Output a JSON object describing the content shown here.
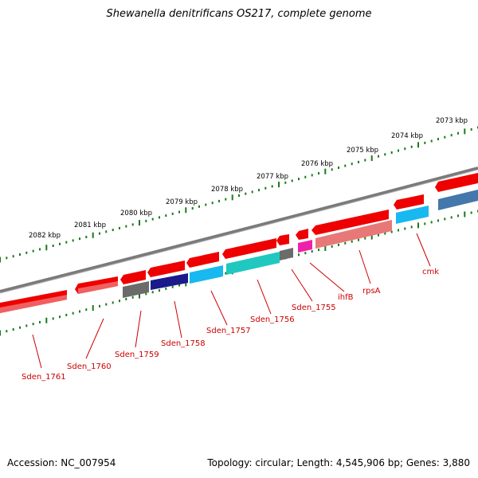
{
  "title": "Shewanella denitrificans OS217, complete genome",
  "footer": {
    "accession": "Accession: NC_007954",
    "summary": "Topology: circular; Length: 4,545,906 bp; Genes: 3,880"
  },
  "colors": {
    "backbone": "#808080",
    "forward_gene": "#ee0000",
    "reverse_gene_red": "#ee1111",
    "reverse_gene_pink": "#e87878",
    "reverse_gene_gray": "#6b6b6b",
    "reverse_gene_navy": "#1a1a8c",
    "reverse_gene_cyan": "#18b8f0",
    "reverse_gene_teal": "#20c8c0",
    "reverse_gene_magenta": "#ee22aa",
    "reverse_gene_steel": "#4477aa",
    "tick_marks": "#1a7a1a",
    "gene_labels": "#cc0000"
  },
  "scale_ticks": [
    "2073 kbp",
    "2074 kbp",
    "2075 kbp",
    "2076 kbp",
    "2077 kbp",
    "2078 kbp",
    "2079 kbp",
    "2080 kbp",
    "2081 kbp",
    "2082 kbp"
  ],
  "gene_labels": [
    "Sden_1761",
    "Sden_1760",
    "Sden_1759",
    "Sden_1758",
    "Sden_1757",
    "Sden_1756",
    "Sden_1755",
    "ihfB",
    "rpsA",
    "cmk"
  ]
}
